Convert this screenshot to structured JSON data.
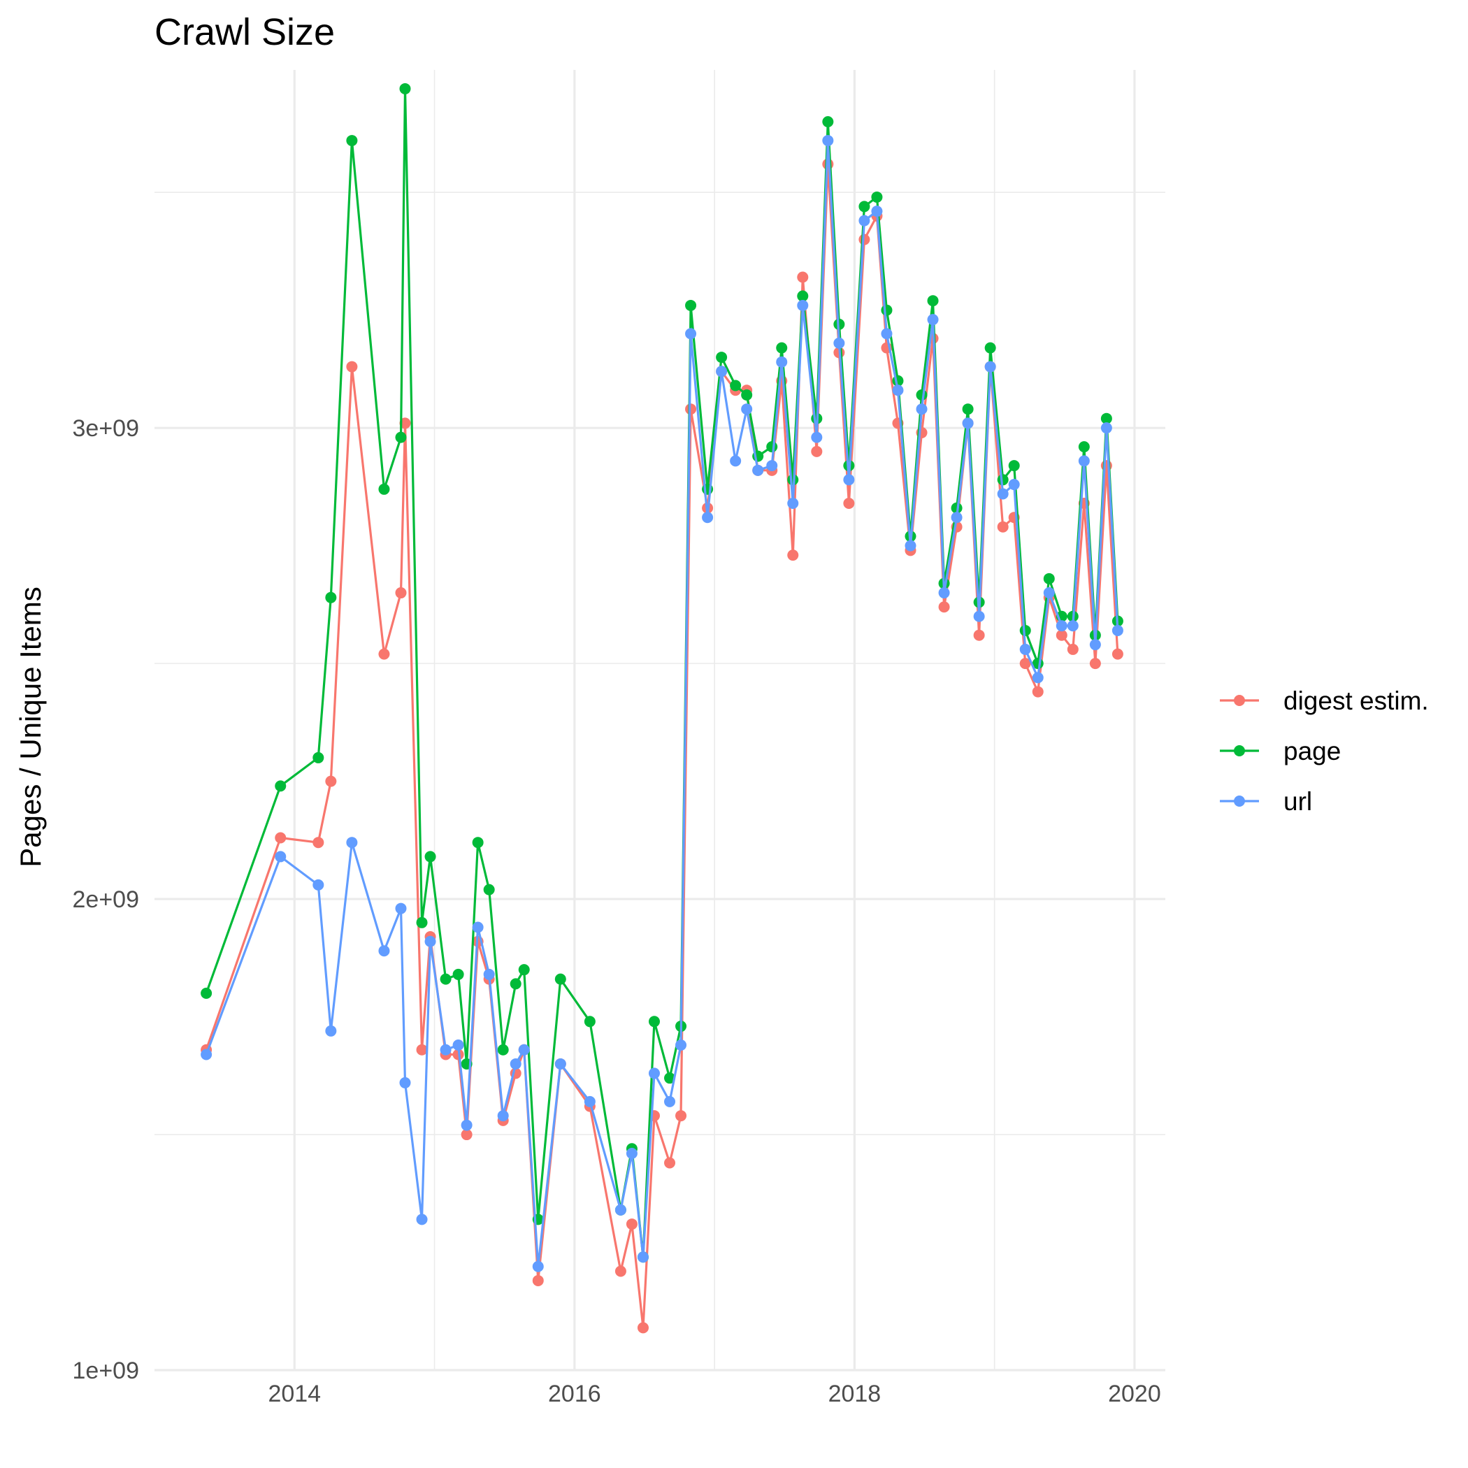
{
  "chart_data": {
    "type": "line",
    "title": "Crawl Size",
    "xlabel": "",
    "ylabel": "Pages / Unique Items",
    "x_ticks": [
      "2014",
      "2016",
      "2018",
      "2020"
    ],
    "y_ticks": [
      "1e+09",
      "2e+09",
      "3e+09"
    ],
    "xlim": [
      2013.0,
      2020.22
    ],
    "ylim": [
      1000000000.0,
      3760000000.0
    ],
    "grid": true,
    "legend_position": "right",
    "series": [
      {
        "name": "digest estim.",
        "color": "#F8766D",
        "points": [
          [
            2013.37,
            1680000000.0
          ],
          [
            2013.9,
            2130000000.0
          ],
          [
            2014.17,
            2120000000.0
          ],
          [
            2014.26,
            2250000000.0
          ],
          [
            2014.41,
            3130000000.0
          ],
          [
            2014.64,
            2520000000.0
          ],
          [
            2014.76,
            2650000000.0
          ],
          [
            2014.79,
            3010000000.0
          ],
          [
            2014.91,
            1680000000.0
          ],
          [
            2014.97,
            1920000000.0
          ],
          [
            2015.08,
            1670000000.0
          ],
          [
            2015.17,
            1670000000.0
          ],
          [
            2015.23,
            1500000000.0
          ],
          [
            2015.31,
            1910000000.0
          ],
          [
            2015.39,
            1830000000.0
          ],
          [
            2015.49,
            1530000000.0
          ],
          [
            2015.58,
            1630000000.0
          ],
          [
            2015.64,
            1680000000.0
          ],
          [
            2015.74,
            1190000000.0
          ],
          [
            2015.9,
            1650000000.0
          ],
          [
            2016.11,
            1560000000.0
          ],
          [
            2016.33,
            1210000000.0
          ],
          [
            2016.41,
            1310000000.0
          ],
          [
            2016.49,
            1090000000.0
          ],
          [
            2016.57,
            1540000000.0
          ],
          [
            2016.68,
            1440000000.0
          ],
          [
            2016.76,
            1540000000.0
          ],
          [
            2016.83,
            3040000000.0
          ],
          [
            2016.95,
            2830000000.0
          ],
          [
            2017.05,
            3120000000.0
          ],
          [
            2017.15,
            3080000000.0
          ],
          [
            2017.23,
            3080000000.0
          ],
          [
            2017.31,
            2910000000.0
          ],
          [
            2017.41,
            2910000000.0
          ],
          [
            2017.48,
            3100000000.0
          ],
          [
            2017.56,
            2730000000.0
          ],
          [
            2017.63,
            3320000000.0
          ],
          [
            2017.73,
            2950000000.0
          ],
          [
            2017.81,
            3560000000.0
          ],
          [
            2017.89,
            3160000000.0
          ],
          [
            2017.96,
            2840000000.0
          ],
          [
            2018.07,
            3400000000.0
          ],
          [
            2018.16,
            3450000000.0
          ],
          [
            2018.23,
            3170000000.0
          ],
          [
            2018.31,
            3010000000.0
          ],
          [
            2018.4,
            2740000000.0
          ],
          [
            2018.48,
            2990000000.0
          ],
          [
            2018.56,
            3190000000.0
          ],
          [
            2018.64,
            2620000000.0
          ],
          [
            2018.73,
            2790000000.0
          ],
          [
            2018.81,
            3010000000.0
          ],
          [
            2018.89,
            2560000000.0
          ],
          [
            2018.97,
            3130000000.0
          ],
          [
            2019.06,
            2790000000.0
          ],
          [
            2019.14,
            2810000000.0
          ],
          [
            2019.22,
            2500000000.0
          ],
          [
            2019.31,
            2440000000.0
          ],
          [
            2019.39,
            2640000000.0
          ],
          [
            2019.48,
            2560000000.0
          ],
          [
            2019.56,
            2530000000.0
          ],
          [
            2019.64,
            2840000000.0
          ],
          [
            2019.72,
            2500000000.0
          ],
          [
            2019.8,
            2920000000.0
          ],
          [
            2019.88,
            2520000000.0
          ]
        ]
      },
      {
        "name": "page",
        "color": "#00BA38",
        "points": [
          [
            2013.37,
            1800000000.0
          ],
          [
            2013.9,
            2240000000.0
          ],
          [
            2014.17,
            2300000000.0
          ],
          [
            2014.26,
            2640000000.0
          ],
          [
            2014.41,
            3610000000.0
          ],
          [
            2014.64,
            2870000000.0
          ],
          [
            2014.76,
            2980000000.0
          ],
          [
            2014.79,
            3720000000.0
          ],
          [
            2014.91,
            1950000000.0
          ],
          [
            2014.97,
            2090000000.0
          ],
          [
            2015.08,
            1830000000.0
          ],
          [
            2015.17,
            1840000000.0
          ],
          [
            2015.23,
            1650000000.0
          ],
          [
            2015.31,
            2120000000.0
          ],
          [
            2015.39,
            2020000000.0
          ],
          [
            2015.49,
            1680000000.0
          ],
          [
            2015.58,
            1820000000.0
          ],
          [
            2015.64,
            1850000000.0
          ],
          [
            2015.74,
            1320000000.0
          ],
          [
            2015.9,
            1830000000.0
          ],
          [
            2016.11,
            1740000000.0
          ],
          [
            2016.33,
            1340000000.0
          ],
          [
            2016.41,
            1470000000.0
          ],
          [
            2016.49,
            1240000000.0
          ],
          [
            2016.57,
            1740000000.0
          ],
          [
            2016.68,
            1620000000.0
          ],
          [
            2016.76,
            1730000000.0
          ],
          [
            2016.83,
            3260000000.0
          ],
          [
            2016.95,
            2870000000.0
          ],
          [
            2017.05,
            3150000000.0
          ],
          [
            2017.15,
            3090000000.0
          ],
          [
            2017.23,
            3070000000.0
          ],
          [
            2017.31,
            2940000000.0
          ],
          [
            2017.41,
            2960000000.0
          ],
          [
            2017.48,
            3170000000.0
          ],
          [
            2017.56,
            2890000000.0
          ],
          [
            2017.63,
            3280000000.0
          ],
          [
            2017.73,
            3020000000.0
          ],
          [
            2017.81,
            3650000000.0
          ],
          [
            2017.89,
            3220000000.0
          ],
          [
            2017.96,
            2920000000.0
          ],
          [
            2018.07,
            3470000000.0
          ],
          [
            2018.16,
            3490000000.0
          ],
          [
            2018.23,
            3250000000.0
          ],
          [
            2018.31,
            3100000000.0
          ],
          [
            2018.4,
            2770000000.0
          ],
          [
            2018.48,
            3070000000.0
          ],
          [
            2018.56,
            3270000000.0
          ],
          [
            2018.64,
            2670000000.0
          ],
          [
            2018.73,
            2830000000.0
          ],
          [
            2018.81,
            3040000000.0
          ],
          [
            2018.89,
            2630000000.0
          ],
          [
            2018.97,
            3170000000.0
          ],
          [
            2019.06,
            2890000000.0
          ],
          [
            2019.14,
            2920000000.0
          ],
          [
            2019.22,
            2570000000.0
          ],
          [
            2019.31,
            2500000000.0
          ],
          [
            2019.39,
            2680000000.0
          ],
          [
            2019.48,
            2600000000.0
          ],
          [
            2019.56,
            2600000000.0
          ],
          [
            2019.64,
            2960000000.0
          ],
          [
            2019.72,
            2560000000.0
          ],
          [
            2019.8,
            3020000000.0
          ],
          [
            2019.88,
            2590000000.0
          ]
        ]
      },
      {
        "name": "url",
        "color": "#619CFF",
        "points": [
          [
            2013.37,
            1670000000.0
          ],
          [
            2013.9,
            2090000000.0
          ],
          [
            2014.17,
            2030000000.0
          ],
          [
            2014.26,
            1720000000.0
          ],
          [
            2014.41,
            2120000000.0
          ],
          [
            2014.64,
            1890000000.0
          ],
          [
            2014.76,
            1980000000.0
          ],
          [
            2014.79,
            1610000000.0
          ],
          [
            2014.91,
            1320000000.0
          ],
          [
            2014.97,
            1910000000.0
          ],
          [
            2015.08,
            1680000000.0
          ],
          [
            2015.17,
            1690000000.0
          ],
          [
            2015.23,
            1520000000.0
          ],
          [
            2015.31,
            1940000000.0
          ],
          [
            2015.39,
            1840000000.0
          ],
          [
            2015.49,
            1540000000.0
          ],
          [
            2015.58,
            1650000000.0
          ],
          [
            2015.64,
            1680000000.0
          ],
          [
            2015.74,
            1220000000.0
          ],
          [
            2015.9,
            1650000000.0
          ],
          [
            2016.11,
            1570000000.0
          ],
          [
            2016.33,
            1340000000.0
          ],
          [
            2016.41,
            1460000000.0
          ],
          [
            2016.49,
            1240000000.0
          ],
          [
            2016.57,
            1630000000.0
          ],
          [
            2016.68,
            1570000000.0
          ],
          [
            2016.76,
            1690000000.0
          ],
          [
            2016.83,
            3200000000.0
          ],
          [
            2016.95,
            2810000000.0
          ],
          [
            2017.05,
            3120000000.0
          ],
          [
            2017.15,
            2930000000.0
          ],
          [
            2017.23,
            3040000000.0
          ],
          [
            2017.31,
            2910000000.0
          ],
          [
            2017.41,
            2920000000.0
          ],
          [
            2017.48,
            3140000000.0
          ],
          [
            2017.56,
            2840000000.0
          ],
          [
            2017.63,
            3260000000.0
          ],
          [
            2017.73,
            2980000000.0
          ],
          [
            2017.81,
            3610000000.0
          ],
          [
            2017.89,
            3180000000.0
          ],
          [
            2017.96,
            2890000000.0
          ],
          [
            2018.07,
            3440000000.0
          ],
          [
            2018.16,
            3460000000.0
          ],
          [
            2018.23,
            3200000000.0
          ],
          [
            2018.31,
            3080000000.0
          ],
          [
            2018.4,
            2750000000.0
          ],
          [
            2018.48,
            3040000000.0
          ],
          [
            2018.56,
            3230000000.0
          ],
          [
            2018.64,
            2650000000.0
          ],
          [
            2018.73,
            2810000000.0
          ],
          [
            2018.81,
            3010000000.0
          ],
          [
            2018.89,
            2600000000.0
          ],
          [
            2018.97,
            3130000000.0
          ],
          [
            2019.06,
            2860000000.0
          ],
          [
            2019.14,
            2880000000.0
          ],
          [
            2019.22,
            2530000000.0
          ],
          [
            2019.31,
            2470000000.0
          ],
          [
            2019.39,
            2650000000.0
          ],
          [
            2019.48,
            2580000000.0
          ],
          [
            2019.56,
            2580000000.0
          ],
          [
            2019.64,
            2930000000.0
          ],
          [
            2019.72,
            2540000000.0
          ],
          [
            2019.8,
            3000000000.0
          ],
          [
            2019.88,
            2570000000.0
          ]
        ]
      }
    ]
  }
}
